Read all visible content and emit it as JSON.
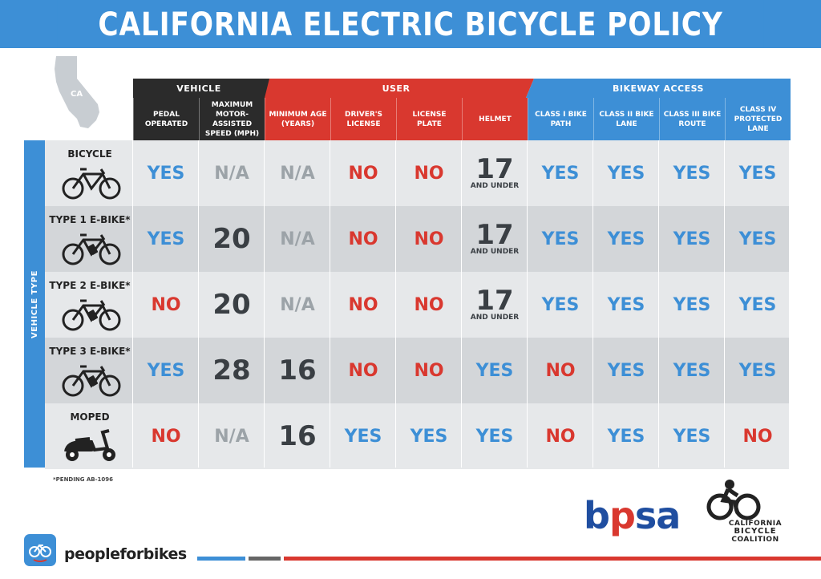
{
  "title": "CALIFORNIA ELECTRIC BICYCLE POLICY",
  "map_label": "CA",
  "groups": {
    "vehicle": "VEHICLE",
    "user": "USER",
    "bikeway": "BIKEWAY ACCESS"
  },
  "columns": [
    "PEDAL OPERATED",
    "MAXIMUM MOTOR-ASSISTED SPEED (MPH)",
    "MINIMUM AGE (YEARS)",
    "DRIVER'S LICENSE",
    "LICENSE PLATE",
    "HELMET",
    "CLASS I BIKE PATH",
    "CLASS II BIKE LANE",
    "CLASS III BIKE ROUTE",
    "CLASS IV PROTECTED LANE"
  ],
  "side_label": "VEHICLE TYPE",
  "rows": [
    {
      "label": "BICYCLE",
      "icon": "bicycle-icon",
      "cells": [
        "YES",
        "N/A",
        "N/A",
        "NO",
        "NO",
        "17",
        "YES",
        "YES",
        "YES",
        "YES"
      ],
      "helmet_sub": "AND UNDER"
    },
    {
      "label": "TYPE 1 E-BIKE*",
      "icon": "ebike-icon",
      "cells": [
        "YES",
        "20",
        "N/A",
        "NO",
        "NO",
        "17",
        "YES",
        "YES",
        "YES",
        "YES"
      ],
      "helmet_sub": "AND UNDER"
    },
    {
      "label": "TYPE 2 E-BIKE*",
      "icon": "ebike-icon",
      "cells": [
        "NO",
        "20",
        "N/A",
        "NO",
        "NO",
        "17",
        "YES",
        "YES",
        "YES",
        "YES"
      ],
      "helmet_sub": "AND UNDER"
    },
    {
      "label": "TYPE 3 E-BIKE*",
      "icon": "ebike-icon",
      "cells": [
        "YES",
        "28",
        "16",
        "NO",
        "NO",
        "YES",
        "NO",
        "YES",
        "YES",
        "YES"
      ],
      "helmet_sub": ""
    },
    {
      "label": "MOPED",
      "icon": "moped-icon",
      "cells": [
        "NO",
        "N/A",
        "16",
        "YES",
        "YES",
        "YES",
        "NO",
        "YES",
        "YES",
        "NO"
      ],
      "helmet_sub": ""
    }
  ],
  "footnote": "*PENDING AB-1096",
  "logos": {
    "peopleforbikes": "peopleforbikes",
    "bpsa_blue1": "b",
    "bpsa_red": "p",
    "bpsa_blue2": "sa",
    "cbc_line1": "CALIFORNIA",
    "cbc_line2": "BICYCLE",
    "cbc_line3": "COALITION"
  },
  "colors": {
    "blue": "#3d8fd6",
    "red": "#d9382f",
    "dark": "#2b2b2b",
    "gray_text": "#9ca3a8"
  }
}
